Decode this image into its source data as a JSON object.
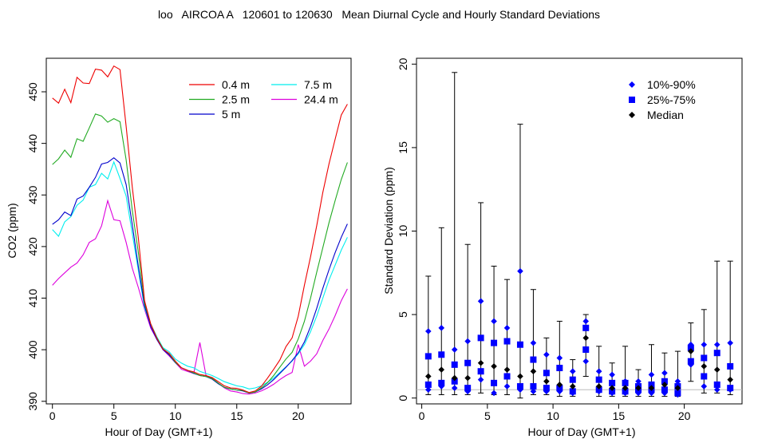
{
  "title": "loo   AIRCOA A   120601 to 120630   Mean Diurnal Cycle and Hourly Standard Deviations",
  "chart_data": [
    {
      "type": "line",
      "xlabel": "Hour of Day (GMT+1)",
      "ylabel": "CO2 (ppm)",
      "xlim": [
        -0.5,
        24.3
      ],
      "ylim": [
        389.5,
        456.5
      ],
      "xticks": [
        0,
        5,
        10,
        15,
        20
      ],
      "yticks": [
        390,
        400,
        410,
        420,
        430,
        440,
        450
      ],
      "legend_position": "top-right",
      "x": [
        0,
        0.5,
        1,
        1.5,
        2,
        2.5,
        3,
        3.5,
        4,
        4.5,
        5,
        5.5,
        6,
        6.5,
        7,
        7.5,
        8,
        8.5,
        9,
        9.5,
        10,
        10.5,
        11,
        11.5,
        12,
        12.5,
        13,
        13.5,
        14,
        14.5,
        15,
        15.5,
        16,
        16.5,
        17,
        17.5,
        18,
        18.5,
        19,
        19.5,
        20,
        20.5,
        21,
        21.5,
        22,
        22.5,
        23,
        23.5,
        24
      ],
      "series": [
        {
          "name": "0.4 m",
          "color": "#ee0000",
          "values": [
            448.8,
            447.8,
            450.5,
            447.9,
            452.8,
            451.7,
            451.6,
            454.4,
            454.2,
            452.9,
            455.0,
            454.3,
            443.3,
            431.5,
            421.5,
            409.5,
            405.0,
            402.2,
            400.1,
            399.3,
            397.8,
            396.5,
            396.0,
            395.7,
            395.2,
            395.0,
            394.6,
            393.8,
            393.0,
            392.6,
            392.5,
            392.2,
            391.7,
            392.0,
            392.9,
            394.5,
            396.2,
            398.0,
            400.6,
            402.3,
            406.5,
            412.5,
            418.0,
            424.0,
            430.5,
            436.0,
            440.8,
            445.5,
            447.6
          ]
        },
        {
          "name": "2.5 m",
          "color": "#22aa22",
          "values": [
            435.9,
            437.0,
            438.7,
            437.3,
            440.9,
            440.4,
            443.0,
            445.7,
            445.3,
            444.1,
            444.8,
            444.2,
            436.8,
            427.0,
            418.7,
            409.0,
            405.0,
            402.3,
            400.2,
            399.2,
            397.6,
            396.5,
            396.0,
            395.5,
            395.0,
            394.8,
            394.4,
            393.5,
            392.7,
            392.4,
            392.2,
            392.1,
            391.6,
            391.8,
            392.6,
            393.6,
            395.0,
            396.6,
            398.2,
            399.5,
            402.1,
            405.5,
            410.0,
            415.0,
            419.8,
            424.6,
            428.9,
            433.0,
            436.3
          ]
        },
        {
          "name": "5 m",
          "color": "#0000cc",
          "values": [
            424.3,
            425.2,
            426.7,
            426.0,
            429.2,
            429.8,
            431.5,
            433.4,
            436.0,
            436.3,
            437.2,
            436.2,
            432.0,
            424.2,
            416.0,
            408.5,
            404.5,
            402.0,
            400.0,
            399.0,
            397.5,
            396.5,
            396.0,
            395.4,
            395.0,
            394.8,
            394.3,
            393.4,
            392.7,
            392.4,
            392.2,
            392.0,
            391.6,
            391.8,
            392.4,
            393.2,
            394.2,
            395.4,
            396.6,
            397.9,
            399.4,
            401.5,
            404.5,
            408.0,
            411.9,
            415.5,
            418.8,
            421.8,
            424.4
          ]
        },
        {
          "name": "7.5 m",
          "color": "#00eeee",
          "values": [
            423.3,
            422.0,
            424.8,
            425.8,
            428.0,
            429.0,
            431.5,
            432.0,
            434.2,
            433.1,
            436.4,
            433.2,
            429.8,
            422.5,
            415.3,
            408.0,
            405.0,
            402.5,
            400.4,
            399.6,
            398.2,
            397.4,
            396.8,
            396.5,
            395.8,
            395.4,
            395.0,
            394.4,
            393.8,
            393.4,
            393.0,
            392.8,
            392.4,
            392.6,
            393.0,
            393.7,
            394.5,
            395.6,
            396.7,
            397.8,
            399.2,
            401.0,
            403.5,
            406.5,
            410.0,
            413.5,
            416.4,
            419.3,
            421.8
          ]
        },
        {
          "name": "24.4 m",
          "color": "#dd00dd",
          "values": [
            412.5,
            413.8,
            414.9,
            416.0,
            416.8,
            418.4,
            420.8,
            421.5,
            424.0,
            428.9,
            425.2,
            425.0,
            420.8,
            415.8,
            412.0,
            407.8,
            404.2,
            402.0,
            400.0,
            398.8,
            397.5,
            396.2,
            395.8,
            395.4,
            401.4,
            395.0,
            394.5,
            393.5,
            392.6,
            392.0,
            391.8,
            391.5,
            391.4,
            391.6,
            392.0,
            392.6,
            393.3,
            394.2,
            395.0,
            395.6,
            401.0,
            396.8,
            397.8,
            399.2,
            401.8,
            404.0,
            406.6,
            409.5,
            411.8
          ]
        }
      ]
    },
    {
      "type": "scatter",
      "xlabel": "Hour of Day (GMT+1)",
      "ylabel": "Standard Deviation (ppm)",
      "xlim": [
        -0.4,
        24.4
      ],
      "ylim": [
        -0.35,
        20.35
      ],
      "xticks": [
        0,
        5,
        10,
        15,
        20
      ],
      "yticks": [
        0,
        5,
        10,
        15,
        20
      ],
      "reference_line": 0.5,
      "legend_position": "top-right",
      "legend": [
        {
          "name": "10%-90%",
          "marker": "diamond",
          "color": "#0000ff"
        },
        {
          "name": "25%-75%",
          "marker": "square",
          "color": "#0000ff"
        },
        {
          "name": "Median",
          "marker": "diamond",
          "color": "#000000"
        }
      ],
      "x": [
        0.5,
        1.5,
        2.5,
        3.5,
        4.5,
        5.5,
        6.5,
        7.5,
        8.5,
        9.5,
        10.5,
        11.5,
        12.5,
        13.5,
        14.5,
        15.5,
        16.5,
        17.5,
        18.5,
        19.5,
        20.5,
        21.5,
        22.5,
        23.5
      ],
      "whisker_low": [
        0.2,
        0.2,
        0.2,
        0.2,
        0.3,
        0.2,
        0.2,
        0.0,
        0.2,
        0.2,
        0.1,
        0.1,
        1.3,
        0.1,
        0.1,
        0.1,
        0.1,
        0.1,
        0.1,
        0.1,
        1.0,
        0.3,
        0.3,
        0.2
      ],
      "whisker_high": [
        7.3,
        10.2,
        19.5,
        9.2,
        11.7,
        7.9,
        7.1,
        16.4,
        6.5,
        3.6,
        4.6,
        2.3,
        5.0,
        3.1,
        2.1,
        3.1,
        1.7,
        3.2,
        2.7,
        2.8,
        4.5,
        5.3,
        8.2,
        8.2
      ],
      "p10": [
        0.5,
        0.7,
        0.6,
        0.4,
        1.1,
        0.3,
        0.7,
        0.5,
        0.4,
        0.4,
        0.4,
        0.3,
        2.2,
        0.4,
        0.3,
        0.3,
        0.3,
        0.3,
        0.3,
        0.2,
        2.0,
        0.7,
        0.5,
        0.5
      ],
      "p90": [
        4.0,
        4.2,
        2.9,
        3.4,
        5.8,
        4.6,
        4.2,
        7.6,
        3.3,
        2.6,
        2.4,
        1.6,
        4.6,
        1.6,
        1.4,
        1.0,
        1.0,
        1.4,
        1.5,
        1.0,
        3.2,
        3.2,
        3.2,
        3.3
      ],
      "p25": [
        0.8,
        0.9,
        1.0,
        0.6,
        1.6,
        0.9,
        1.3,
        0.7,
        0.7,
        0.6,
        0.6,
        0.4,
        2.9,
        0.5,
        0.4,
        0.4,
        0.5,
        0.5,
        0.5,
        0.3,
        2.2,
        1.3,
        0.8,
        0.6
      ],
      "p75": [
        2.5,
        2.6,
        2.0,
        2.1,
        3.6,
        3.3,
        3.4,
        3.2,
        2.3,
        1.5,
        1.8,
        1.1,
        4.2,
        1.1,
        0.9,
        0.9,
        0.7,
        0.8,
        1.0,
        0.7,
        3.0,
        2.4,
        2.7,
        1.9
      ],
      "median": [
        1.3,
        1.7,
        1.2,
        1.2,
        2.1,
        1.9,
        1.7,
        1.3,
        1.6,
        1.0,
        0.8,
        0.7,
        3.6,
        0.7,
        0.6,
        0.6,
        0.6,
        0.6,
        0.8,
        0.6,
        2.8,
        1.9,
        1.7,
        1.1
      ]
    }
  ]
}
